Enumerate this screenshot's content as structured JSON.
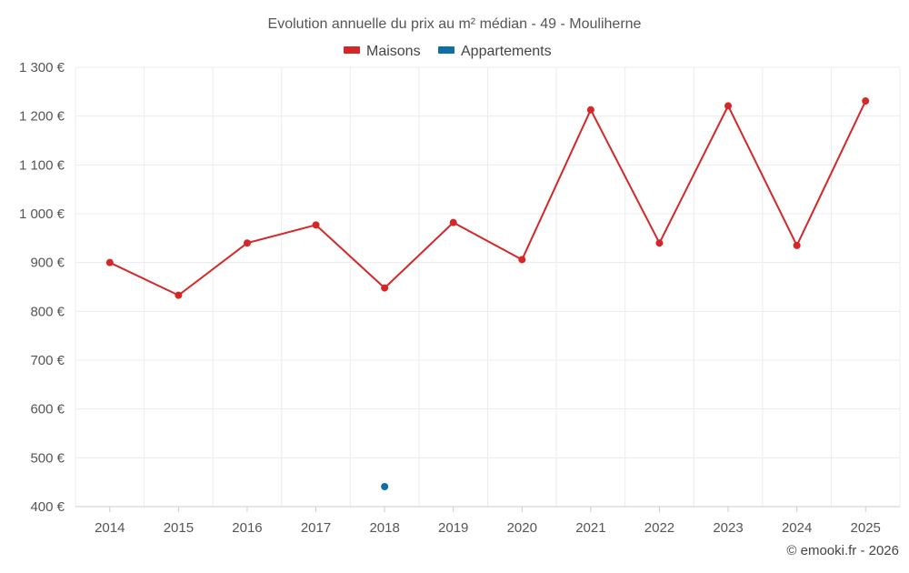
{
  "chart_data": {
    "type": "line",
    "title": "Evolution annuelle du prix au m² médian - 49 - Mouliherne",
    "categories": [
      "2014",
      "2015",
      "2016",
      "2017",
      "2018",
      "2019",
      "2020",
      "2021",
      "2022",
      "2023",
      "2024",
      "2025"
    ],
    "series": [
      {
        "name": "Maisons",
        "color": "#d62728",
        "values": [
          900,
          833,
          940,
          977,
          848,
          982,
          906,
          1213,
          940,
          1221,
          935,
          1231
        ]
      },
      {
        "name": "Appartements",
        "color": "#0f6ea6",
        "values": [
          null,
          null,
          null,
          null,
          441,
          null,
          null,
          null,
          null,
          null,
          null,
          null
        ]
      }
    ],
    "ylim": [
      400,
      1300
    ],
    "yticks": [
      400,
      500,
      600,
      700,
      800,
      900,
      1000,
      1100,
      1200,
      1300
    ],
    "ytick_labels": [
      "400 €",
      "500 €",
      "600 €",
      "700 €",
      "800 €",
      "900 €",
      "1 000 €",
      "1 100 €",
      "1 200 €",
      "1 300 €"
    ],
    "xlabel": "",
    "ylabel": "",
    "grid": true,
    "legend_position": "top-center"
  },
  "credit": "© emooki.fr - 2026"
}
